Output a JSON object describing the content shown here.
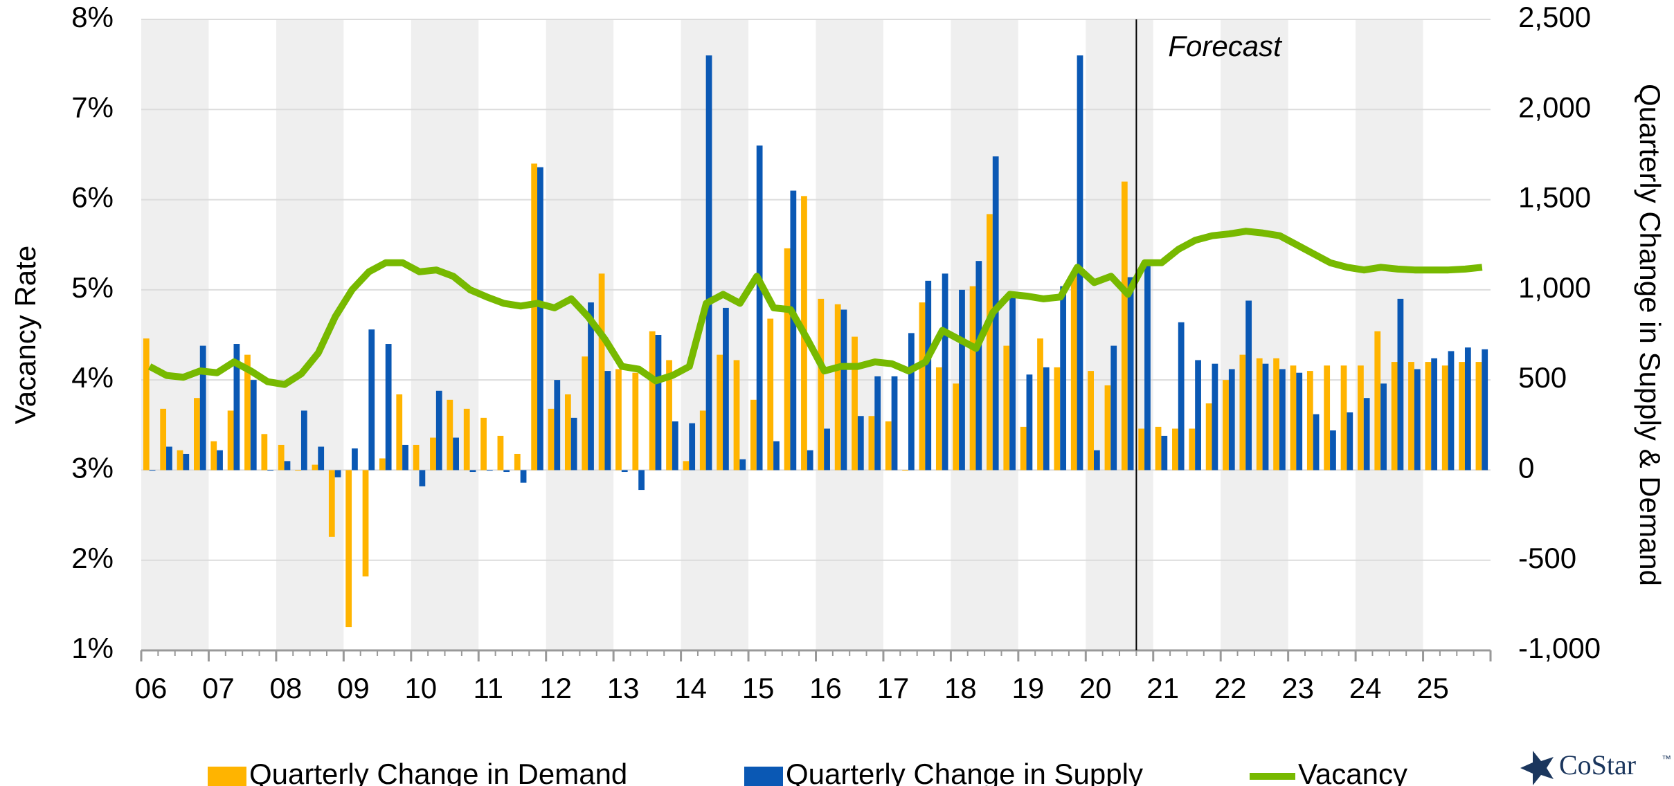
{
  "chart_data": {
    "type": "bar-line",
    "categories": [
      "06",
      null,
      null,
      null,
      "07",
      null,
      null,
      null,
      "08",
      null,
      null,
      null,
      "09",
      null,
      null,
      null,
      "10",
      null,
      null,
      null,
      "11",
      null,
      null,
      null,
      "12",
      null,
      null,
      null,
      "13",
      null,
      null,
      null,
      "14",
      null,
      null,
      null,
      "15",
      null,
      null,
      null,
      "16",
      null,
      null,
      null,
      "17",
      null,
      null,
      null,
      "18",
      null,
      null,
      null,
      "19",
      null,
      null,
      null,
      "20",
      null,
      null,
      null,
      "21",
      null,
      null,
      null,
      "22",
      null,
      null,
      null,
      "23",
      null,
      null,
      null,
      "24",
      null,
      null,
      null,
      "25",
      null,
      null,
      null
    ],
    "series": [
      {
        "name": "Quarterly Change in Demand",
        "type": "bar",
        "axis": "y2",
        "color": "#ffb400",
        "values": [
          730,
          340,
          110,
          400,
          160,
          330,
          640,
          200,
          140,
          0,
          30,
          -370,
          -870,
          -590,
          65,
          420,
          140,
          180,
          390,
          340,
          290,
          190,
          90,
          1700,
          340,
          420,
          630,
          1090,
          560,
          540,
          770,
          610,
          50,
          330,
          640,
          610,
          390,
          840,
          1230,
          1520,
          950,
          920,
          740,
          300,
          270,
          0,
          930,
          570,
          480,
          1020,
          1420,
          690,
          240,
          730,
          570,
          1100,
          550,
          470,
          1600,
          230,
          240,
          230,
          230,
          370,
          500,
          640,
          620,
          620,
          580,
          550,
          580,
          580,
          580,
          770,
          600,
          600,
          600,
          580,
          600,
          600
        ]
      },
      {
        "name": "Quarterly Change in Supply",
        "type": "bar",
        "axis": "y2",
        "color": "#0a58b4",
        "values": [
          0,
          130,
          90,
          690,
          110,
          700,
          500,
          0,
          50,
          330,
          130,
          -40,
          120,
          780,
          700,
          140,
          -90,
          440,
          180,
          -10,
          0,
          -10,
          -70,
          1680,
          500,
          290,
          930,
          550,
          -10,
          -110,
          750,
          270,
          260,
          2300,
          900,
          60,
          1800,
          160,
          1550,
          110,
          230,
          890,
          300,
          520,
          520,
          760,
          1050,
          1090,
          1000,
          1160,
          1740,
          960,
          530,
          570,
          1020,
          2300,
          110,
          690,
          1070,
          1150,
          190,
          820,
          610,
          590,
          560,
          940,
          590,
          560,
          540,
          310,
          220,
          320,
          400,
          480,
          950,
          560,
          620,
          660,
          680,
          670
        ]
      },
      {
        "name": "Vacancy",
        "type": "line",
        "axis": "y",
        "color": "#77b900",
        "values": [
          4.15,
          4.05,
          4.03,
          4.1,
          4.08,
          4.2,
          4.1,
          3.98,
          3.95,
          4.07,
          4.3,
          4.7,
          5.0,
          5.2,
          5.3,
          5.3,
          5.2,
          5.22,
          5.15,
          5.0,
          4.92,
          4.85,
          4.82,
          4.85,
          4.8,
          4.9,
          4.7,
          4.45,
          4.15,
          4.12,
          3.99,
          4.05,
          4.15,
          4.85,
          4.95,
          4.85,
          5.15,
          4.8,
          4.78,
          4.45,
          4.1,
          4.15,
          4.15,
          4.2,
          4.18,
          4.1,
          4.2,
          4.55,
          4.45,
          4.35,
          4.75,
          4.95,
          4.93,
          4.9,
          4.92,
          5.25,
          5.08,
          5.15,
          4.95,
          5.3,
          5.3,
          5.45,
          5.55,
          5.6,
          5.62,
          5.65,
          5.63,
          5.6,
          5.5,
          5.4,
          5.3,
          5.25,
          5.22,
          5.25,
          5.23,
          5.22,
          5.22,
          5.22,
          5.23,
          5.25
        ]
      }
    ],
    "ylabel": "Vacancy Rate",
    "y2label": "Quarterly Change in Supply & Demand",
    "ylim": [
      1,
      8
    ],
    "yticks": [
      {
        "value": 1,
        "label": "1%"
      },
      {
        "value": 2,
        "label": "2%"
      },
      {
        "value": 3,
        "label": "3%"
      },
      {
        "value": 4,
        "label": "4%"
      },
      {
        "value": 5,
        "label": "5%"
      },
      {
        "value": 6,
        "label": "6%"
      },
      {
        "value": 7,
        "label": "7%"
      },
      {
        "value": 8,
        "label": "8%"
      }
    ],
    "y2lim": [
      -1000,
      2500
    ],
    "y2ticks": [
      {
        "value": -1000,
        "label": "-1,000"
      },
      -500,
      0,
      500,
      {
        "value": 1000,
        "label": "1,000"
      },
      {
        "value": 1500,
        "label": "1,500"
      },
      {
        "value": 2000,
        "label": "2,000"
      },
      {
        "value": 2500,
        "label": "2,500"
      }
    ],
    "grid": true,
    "annotations": [
      {
        "text": "Forecast",
        "x": 59
      }
    ],
    "legend": "bottom",
    "logo": "CoStar"
  }
}
